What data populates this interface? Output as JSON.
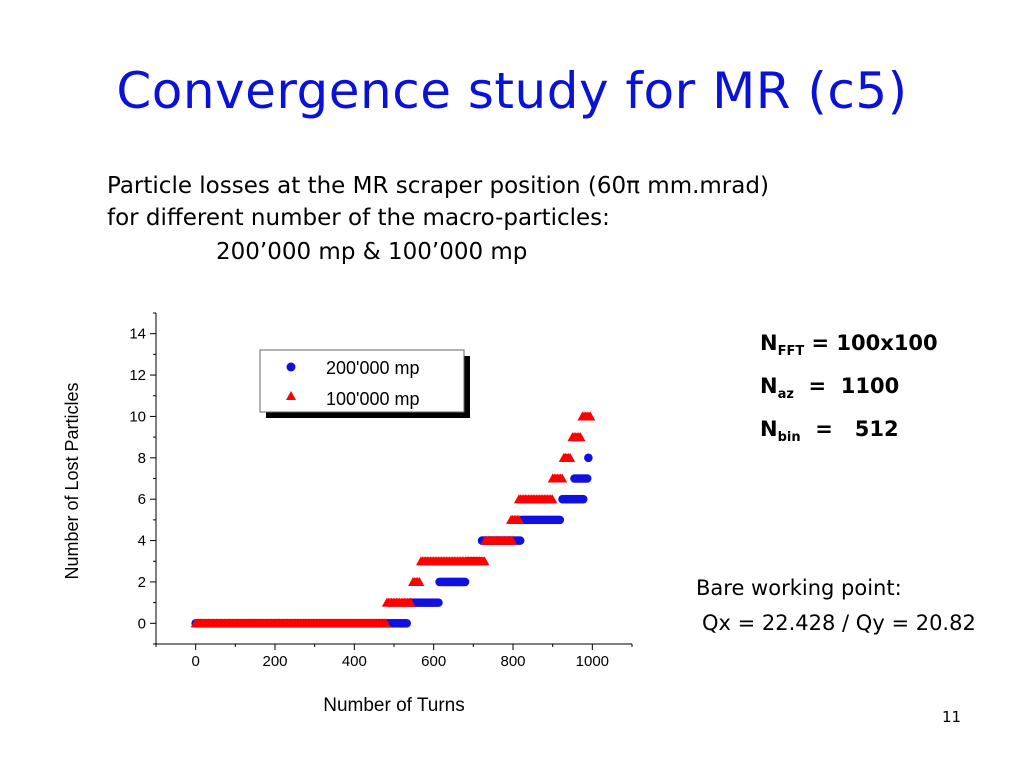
{
  "slide": {
    "title": "Convergence study for MR (c5)",
    "desc_line1": "Particle losses at the MR scraper position (60π mm.mrad)",
    "desc_line2": "for different number of the macro-particles:",
    "desc_line3": "200’000 mp & 100’000 mp",
    "page_number": "11"
  },
  "params": {
    "n_fft_sym": "N",
    "n_fft_sub": "FFT",
    "n_fft_val": " = 100x100",
    "n_az_sym": "N",
    "n_az_sub": "az",
    "n_az_val": "  =  1100",
    "n_bin_sym": "N",
    "n_bin_sub": "bin",
    "n_bin_val": "  =   512"
  },
  "working_point": {
    "label": "Bare working point:",
    "value": "Qx = 22.428 / Qy = 20.82"
  },
  "colors": {
    "title": "#0a12d6",
    "series_200k": "#1010e0",
    "series_100k": "#ff0000"
  },
  "chart_data": {
    "type": "scatter",
    "title": "",
    "xlabel": "Number of Turns",
    "ylabel": "Number of Lost Particles",
    "xlim": [
      -100,
      1100
    ],
    "ylim": [
      -1,
      15
    ],
    "xticks": [
      0,
      200,
      400,
      600,
      800,
      1000
    ],
    "yticks": [
      0,
      2,
      4,
      6,
      8,
      10,
      12,
      14
    ],
    "legend_position": "top-left",
    "series": [
      {
        "name": "200'000 mp",
        "marker": "circle",
        "color": "#1010e0",
        "steps": [
          {
            "y": 0,
            "x_from": 0,
            "x_to": 535
          },
          {
            "y": 1,
            "x_from": 540,
            "x_to": 612
          },
          {
            "y": 2,
            "x_from": 615,
            "x_to": 680
          },
          {
            "y": 3,
            "x_from": 685,
            "x_to": 720
          },
          {
            "y": 4,
            "x_from": 722,
            "x_to": 820
          },
          {
            "y": 5,
            "x_from": 822,
            "x_to": 920
          },
          {
            "y": 6,
            "x_from": 925,
            "x_to": 980
          },
          {
            "y": 7,
            "x_from": 955,
            "x_to": 990
          },
          {
            "y": 8,
            "x_from": 990,
            "x_to": 990
          }
        ]
      },
      {
        "name": "100'000 mp",
        "marker": "triangle",
        "color": "#ff0000",
        "steps": [
          {
            "y": 0,
            "x_from": 0,
            "x_to": 482
          },
          {
            "y": 1,
            "x_from": 482,
            "x_to": 545
          },
          {
            "y": 2,
            "x_from": 548,
            "x_to": 565
          },
          {
            "y": 3,
            "x_from": 568,
            "x_to": 728
          },
          {
            "y": 4,
            "x_from": 730,
            "x_to": 800
          },
          {
            "y": 5,
            "x_from": 795,
            "x_to": 815
          },
          {
            "y": 6,
            "x_from": 815,
            "x_to": 900
          },
          {
            "y": 7,
            "x_from": 900,
            "x_to": 925
          },
          {
            "y": 8,
            "x_from": 928,
            "x_to": 945
          },
          {
            "y": 9,
            "x_from": 950,
            "x_to": 972
          },
          {
            "y": 10,
            "x_from": 975,
            "x_to": 995
          }
        ]
      }
    ]
  }
}
